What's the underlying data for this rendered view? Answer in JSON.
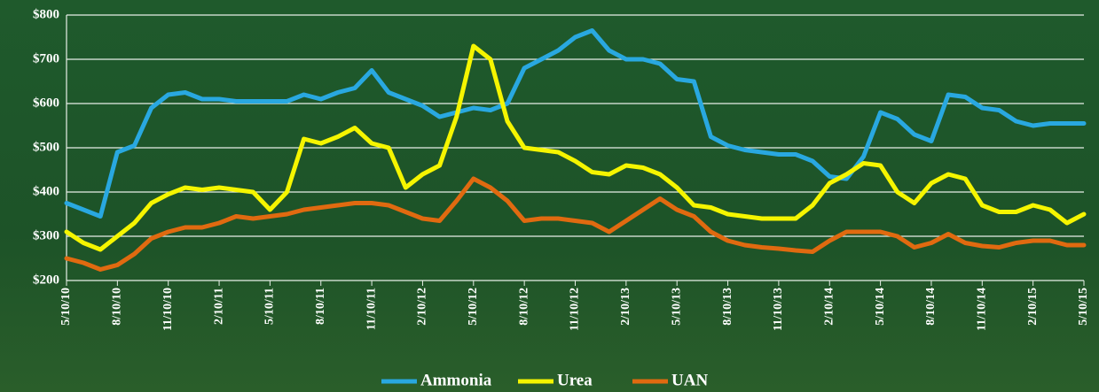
{
  "chart_data": {
    "type": "line",
    "categories": [
      "5/10/10",
      null,
      null,
      "8/10/10",
      null,
      null,
      "11/10/10",
      null,
      null,
      "2/10/11",
      null,
      null,
      "5/10/11",
      null,
      null,
      "8/10/11",
      null,
      null,
      "11/10/11",
      null,
      null,
      "2/10/12",
      null,
      null,
      "5/10/12",
      null,
      null,
      "8/10/12",
      null,
      null,
      "11/10/12",
      null,
      null,
      "2/10/13",
      null,
      null,
      "5/10/13",
      null,
      null,
      "8/10/13",
      null,
      null,
      "11/10/13",
      null,
      null,
      "2/10/14",
      null,
      null,
      "5/10/14",
      null,
      null,
      "8/10/14",
      null,
      null,
      "11/10/14",
      null,
      null,
      "2/10/15",
      null,
      null,
      "5/10/15"
    ],
    "series": [
      {
        "name": "Ammonia",
        "color": "#29a8e0",
        "values": [
          375,
          360,
          345,
          490,
          505,
          590,
          620,
          625,
          610,
          610,
          605,
          605,
          605,
          605,
          620,
          610,
          625,
          635,
          675,
          625,
          610,
          595,
          570,
          580,
          590,
          585,
          600,
          680,
          700,
          720,
          750,
          765,
          720,
          700,
          700,
          690,
          655,
          650,
          525,
          505,
          495,
          490,
          485,
          485,
          470,
          435,
          430,
          480,
          580,
          565,
          530,
          515,
          620,
          615,
          590,
          585,
          560,
          550,
          555,
          555,
          555
        ]
      },
      {
        "name": "Urea",
        "color": "#f5f500",
        "values": [
          310,
          285,
          270,
          300,
          330,
          375,
          395,
          410,
          405,
          410,
          405,
          400,
          360,
          400,
          520,
          510,
          525,
          545,
          510,
          500,
          410,
          440,
          460,
          570,
          730,
          700,
          560,
          500,
          495,
          490,
          470,
          445,
          440,
          460,
          455,
          440,
          410,
          370,
          365,
          350,
          345,
          340,
          340,
          340,
          370,
          420,
          440,
          465,
          460,
          400,
          375,
          420,
          440,
          430,
          370,
          355,
          355,
          370,
          360,
          330,
          350
        ]
      },
      {
        "name": "UAN",
        "color": "#e06a10",
        "values": [
          250,
          240,
          225,
          235,
          260,
          295,
          310,
          320,
          320,
          330,
          345,
          340,
          345,
          350,
          360,
          365,
          370,
          375,
          375,
          370,
          355,
          340,
          335,
          380,
          430,
          410,
          380,
          335,
          340,
          340,
          335,
          330,
          310,
          335,
          360,
          385,
          360,
          345,
          310,
          290,
          280,
          275,
          272,
          268,
          265,
          290,
          310,
          310,
          310,
          300,
          275,
          285,
          305,
          285,
          278,
          275,
          285,
          290,
          290,
          280,
          280
        ]
      }
    ],
    "ylim": [
      200,
      800
    ],
    "yticks": [
      {
        "value": 200,
        "label": "$200"
      },
      {
        "value": 300,
        "label": "$300"
      },
      {
        "value": 400,
        "label": "$400"
      },
      {
        "value": 500,
        "label": "$500"
      },
      {
        "value": 600,
        "label": "$600"
      },
      {
        "value": 700,
        "label": "$700"
      },
      {
        "value": 800,
        "label": "$800"
      }
    ],
    "grid": true,
    "legend": "bottom"
  }
}
